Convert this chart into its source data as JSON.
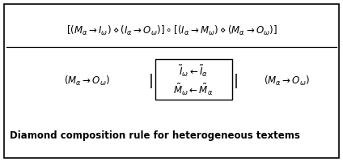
{
  "fig_width": 4.24,
  "fig_height": 2.0,
  "dpi": 100,
  "bg_color": "#ffffff",
  "border_color": "#000000",
  "title_text": "Diamond composition rule for heterogeneous textems",
  "title_fontsize": 8.5,
  "title_bold": true,
  "num_text": "$\\left[\\left(M_{\\alpha} \\rightarrow I_{\\omega}\\right) \\diamond \\left(I_{\\alpha} \\rightarrow O_{\\omega}\\right)\\right] \\circ \\left[\\left(I_{\\alpha} \\rightarrow M_{\\omega}\\right) \\diamond \\left(M_{\\alpha} \\rightarrow O_{\\omega}\\right)\\right]$",
  "denom_left": "$\\left(M_{\\alpha} \\rightarrow O_{\\omega}\\right)$",
  "matrix_top": "$\\tilde{I}_{\\omega} \\leftarrow \\tilde{I}_{\\alpha}$",
  "matrix_bot": "$\\tilde{M}_{\\omega} \\leftarrow \\tilde{M}_{\\alpha}$",
  "denom_right": "$\\left(M_{\\alpha} \\rightarrow O_{\\omega}\\right)$",
  "math_fontsize": 8.5,
  "frac_line_color": "#000000"
}
